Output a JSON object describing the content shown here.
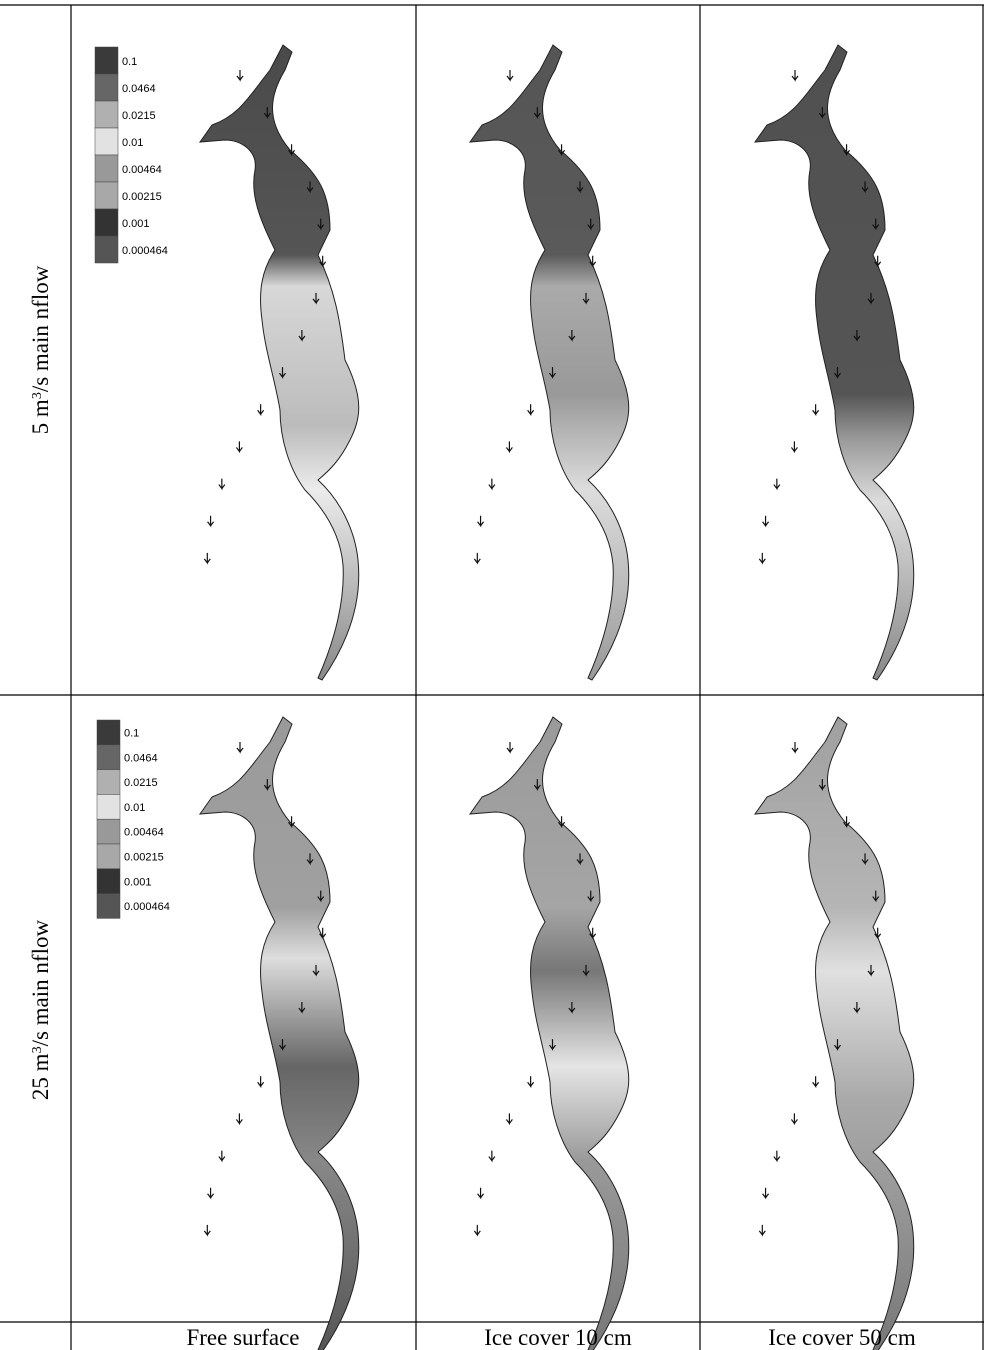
{
  "rows": [
    {
      "label": {
        "pre": "5 m",
        "sup": "3",
        "post": "/s main nflow"
      },
      "legend": [
        "0.1",
        "0.0464",
        "0.0215",
        "0.01",
        "0.00464",
        "0.00215",
        "0.001",
        "0.000464"
      ]
    },
    {
      "label": {
        "pre": "25 m",
        "sup": "3",
        "post": "/s main nflow"
      },
      "legend": [
        "0.1",
        "0.0464",
        "0.0215",
        "0.01",
        "0.00464",
        "0.00215",
        "0.001",
        "0.000464"
      ]
    }
  ],
  "columns": [
    "Free surface",
    "Ice cover 10 cm",
    "Ice cover 50 cm"
  ]
}
